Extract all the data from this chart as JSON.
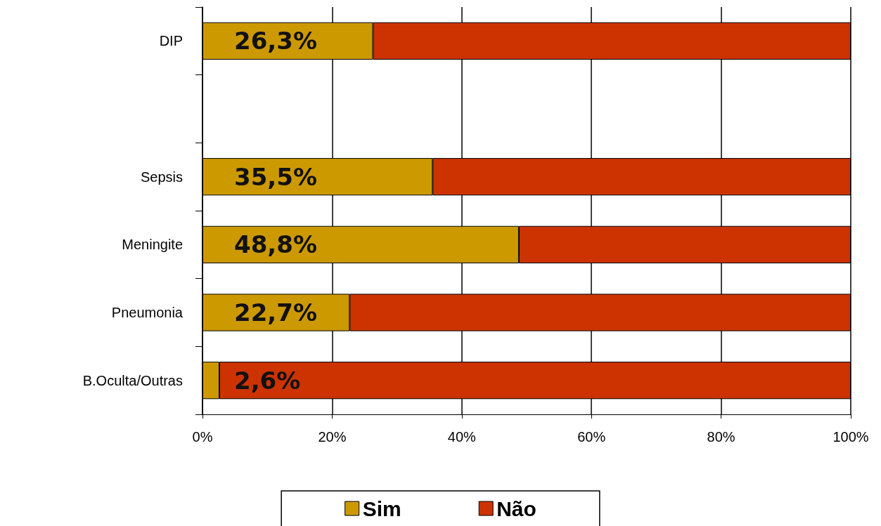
{
  "chart_data": {
    "type": "bar",
    "orientation": "horizontal",
    "stacked": true,
    "categories": [
      "DIP",
      null,
      "Sepsis",
      "Meningite",
      "Pneumonia",
      "B.Oculta/Outras"
    ],
    "series": [
      {
        "name": "Sim",
        "color": "#cc9900",
        "values": [
          26.3,
          null,
          35.5,
          48.8,
          22.7,
          2.6
        ],
        "value_labels": [
          "26,3%",
          null,
          "35,5%",
          "48,8%",
          "22,7%",
          "2,6%"
        ]
      },
      {
        "name": "Não",
        "color": "#cc3300",
        "values": [
          73.7,
          null,
          64.5,
          51.2,
          77.3,
          97.4
        ]
      }
    ],
    "xlim": [
      0,
      100
    ],
    "xticks": [
      {
        "value": 0,
        "label": "0%"
      },
      {
        "value": 20,
        "label": "20%"
      },
      {
        "value": 40,
        "label": "40%"
      },
      {
        "value": 60,
        "label": "60%"
      },
      {
        "value": 80,
        "label": "80%"
      },
      {
        "value": 100,
        "label": "100%"
      }
    ],
    "grid": "x",
    "legend": "bottom"
  }
}
